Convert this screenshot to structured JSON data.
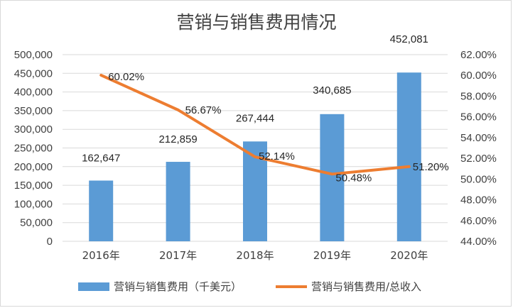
{
  "chart_data": {
    "type": "bar+line",
    "title": "营销与销售费用情况",
    "categories": [
      "2016年",
      "2017年",
      "2018年",
      "2019年",
      "2020年"
    ],
    "series": [
      {
        "name": "营销与销售费用（千美元）",
        "type": "bar",
        "axis": "left",
        "values": [
          162647,
          212859,
          267444,
          340685,
          452081
        ],
        "labels": [
          "162,647",
          "212,859",
          "267,444",
          "340,685",
          "452,081"
        ],
        "color": "#5b9bd5"
      },
      {
        "name": "营销与销售费用/总收入",
        "type": "line",
        "axis": "right",
        "values": [
          60.02,
          56.67,
          52.14,
          50.48,
          51.2
        ],
        "labels": [
          "60.02%",
          "56.67%",
          "52.14%",
          "50.48%",
          "51.20%"
        ],
        "color": "#ed7d31"
      }
    ],
    "y_left": {
      "ylim": [
        0,
        500000
      ],
      "ticks": [
        "0",
        "50,000",
        "100,000",
        "150,000",
        "200,000",
        "250,000",
        "300,000",
        "350,000",
        "400,000",
        "450,000",
        "500,000"
      ]
    },
    "y_right": {
      "ylim": [
        44,
        62
      ],
      "ticks": [
        "44.00%",
        "46.00%",
        "48.00%",
        "50.00%",
        "52.00%",
        "54.00%",
        "56.00%",
        "58.00%",
        "60.00%",
        "62.00%"
      ]
    },
    "grid": true,
    "legend": "bottom"
  }
}
